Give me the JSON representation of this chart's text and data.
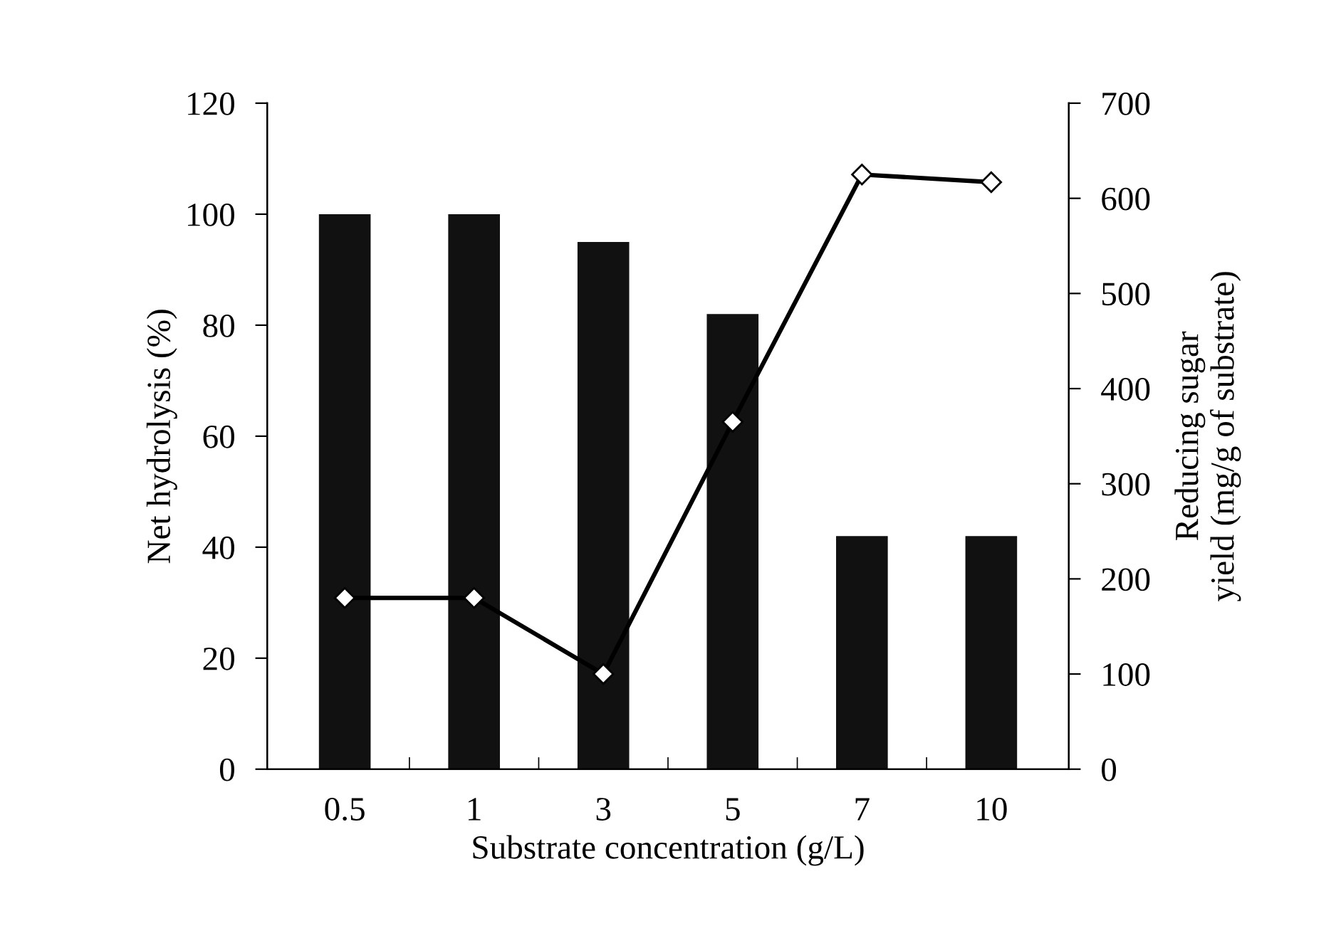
{
  "chart_data": {
    "type": "bar",
    "xlabel": "Substrate concentration (g/L)",
    "ylabel": "Net hydrolysis (%)",
    "y2label": "Reducing sugar\nyield (mg/g of substrate)",
    "categories": [
      "0.5",
      "1",
      "3",
      "5",
      "7",
      "10"
    ],
    "series": [
      {
        "color": "#111111",
        "values": [
          100,
          100,
          95,
          82,
          42,
          42
        ]
      },
      {
        "type": "line",
        "axis": "y2",
        "color": "#000000",
        "marker": "diamond",
        "values": [
          180,
          180,
          100,
          365,
          625,
          617
        ]
      }
    ],
    "ylim": [
      0,
      120
    ],
    "yticks": [
      0,
      20,
      40,
      60,
      80,
      100,
      120
    ],
    "y2lim": [
      0,
      700
    ],
    "y2ticks": [
      0,
      100,
      200,
      300,
      400,
      500,
      600,
      700
    ],
    "grid": false,
    "legend": false
  }
}
